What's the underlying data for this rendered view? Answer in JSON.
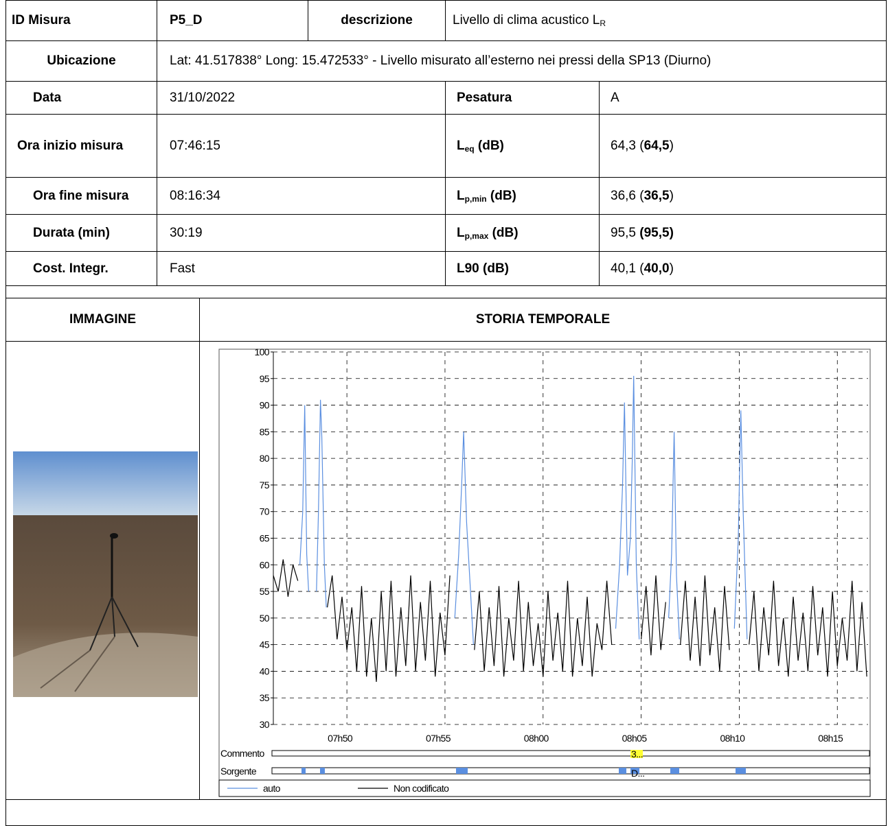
{
  "table": {
    "id_label": "ID Misura",
    "id_value": "P5_D",
    "desc_label": "descrizione",
    "desc_value": {
      "text": "Livello di clima acustico L",
      "sub": "R"
    },
    "location_label": "Ubicazione",
    "location_value": "Lat: 41.517838° Long: 15.472533° - Livello misurato all’esterno nei pressi della SP13 (Diurno)",
    "date_label": "Data",
    "date_value": "31/10/2022",
    "weighting_label": "Pesatura",
    "weighting_value": "A",
    "rows": [
      {
        "label": "Ora inizio misura",
        "value": "07:46:15",
        "param": {
          "text": "L",
          "sub": "eq",
          "unit": " (dB)"
        },
        "result": [
          "64,3 (",
          "64,5",
          ")"
        ]
      },
      {
        "label": "Ora fine misura",
        "value": "08:16:34",
        "param": {
          "text": "L",
          "sub": "p,min",
          "unit": " (dB)"
        },
        "result": [
          "36,6 (",
          "36,5",
          ")"
        ]
      },
      {
        "label": "Durata (min)",
        "value": "30:19",
        "param": {
          "text": "L",
          "sub": "p,max",
          "unit": " (dB)"
        },
        "result": [
          "95,5 ",
          "(95,5)"
        ]
      },
      {
        "label": "Cost. Integr.",
        "value": "Fast",
        "param": {
          "text": "L90 (dB)"
        },
        "result": [
          "40,1 (",
          "40,0",
          ")"
        ]
      }
    ]
  },
  "image_header": "IMMAGINE",
  "chart_header": "STORIA TEMPORALE",
  "chart_data": {
    "type": "line",
    "xlim": [
      466.25,
      496.5667
    ],
    "xticks": [
      {
        "value": 470,
        "label": "07h50"
      },
      {
        "value": 475,
        "label": "07h55"
      },
      {
        "value": 480,
        "label": "08h00"
      },
      {
        "value": 485,
        "label": "08h05"
      },
      {
        "value": 490,
        "label": "08h10"
      },
      {
        "value": 495,
        "label": "08h15"
      }
    ],
    "ylim": [
      30,
      100
    ],
    "yticks": [
      30,
      35,
      40,
      45,
      50,
      55,
      60,
      65,
      70,
      75,
      80,
      85,
      90,
      95,
      100
    ],
    "grid": true,
    "tracks": [
      "Commento",
      "Sorgente"
    ],
    "annotations": [
      "3...",
      "D..."
    ],
    "series": [
      {
        "name": "auto",
        "color": "#5b8fe0",
        "x": [
          467.6,
          467.75,
          467.85,
          467.95,
          468.05,
          468.1,
          468.45,
          468.55,
          468.65,
          468.72,
          468.85,
          468.95,
          469.0,
          475.5,
          475.7,
          475.85,
          475.95,
          476.1,
          476.3,
          476.45,
          476.5,
          483.7,
          483.9,
          484.05,
          484.15,
          484.3,
          484.45,
          484.55,
          484.62,
          484.75,
          484.9,
          485.0,
          486.4,
          486.55,
          486.68,
          486.8,
          486.95,
          487.0,
          489.75,
          489.95,
          490.08,
          490.2,
          490.4
        ],
        "values": [
          60,
          70,
          90,
          62,
          55,
          null,
          55,
          70,
          91,
          84,
          60,
          52,
          null,
          50,
          62,
          75,
          85,
          68,
          55,
          45,
          null,
          48,
          60,
          75,
          90.5,
          58,
          65,
          80,
          95.5,
          60,
          46,
          null,
          50,
          62,
          85,
          58,
          46,
          null,
          48,
          65,
          89,
          70,
          46
        ]
      },
      {
        "name": "Non codificato",
        "color": "#000000",
        "x": [
          466.25,
          466.5,
          466.75,
          467.0,
          467.25,
          467.5,
          467.75,
          468.0,
          468.25,
          468.5,
          468.75,
          469.0,
          469.25,
          469.5,
          469.75,
          470.0,
          470.25,
          470.5,
          470.75,
          471.0,
          471.25,
          471.5,
          471.75,
          472.0,
          472.25,
          472.5,
          472.75,
          473.0,
          473.25,
          473.5,
          473.75,
          474.0,
          474.25,
          474.5,
          474.75,
          475.0,
          475.25,
          475.5,
          475.75,
          476.0,
          476.25,
          476.5,
          476.75,
          477.0,
          477.25,
          477.5,
          477.75,
          478.0,
          478.25,
          478.5,
          478.75,
          479.0,
          479.25,
          479.5,
          479.75,
          480.0,
          480.25,
          480.5,
          480.75,
          481.0,
          481.25,
          481.5,
          481.75,
          482.0,
          482.25,
          482.5,
          482.75,
          483.0,
          483.25,
          483.5,
          483.75,
          484.0,
          484.25,
          484.5,
          484.75,
          485.0,
          485.25,
          485.5,
          485.75,
          486.0,
          486.25,
          486.5,
          486.75,
          487.0,
          487.25,
          487.5,
          487.75,
          488.0,
          488.25,
          488.5,
          488.75,
          489.0,
          489.25,
          489.5,
          489.75,
          490.0,
          490.25,
          490.5,
          490.75,
          491.0,
          491.25,
          491.5,
          491.75,
          492.0,
          492.25,
          492.5,
          492.75,
          493.0,
          493.25,
          493.5,
          493.75,
          494.0,
          494.25,
          494.5,
          494.75,
          495.0,
          495.25,
          495.5,
          495.75,
          496.0,
          496.25,
          496.5
        ],
        "values": [
          58,
          55,
          61,
          54,
          60,
          57,
          null,
          null,
          58,
          null,
          null,
          52,
          58,
          46,
          54,
          44,
          52,
          40,
          56,
          39,
          50,
          38,
          55,
          40,
          57,
          39,
          52,
          41,
          58,
          40,
          53,
          42,
          57,
          39,
          51,
          43,
          58,
          null,
          null,
          null,
          null,
          44,
          55,
          40,
          52,
          41,
          56,
          39,
          50,
          42,
          57,
          40,
          53,
          41,
          49,
          39,
          55,
          42,
          51,
          40,
          57,
          39,
          50,
          41,
          54,
          39,
          49,
          44,
          57,
          45,
          null,
          null,
          null,
          null,
          null,
          46,
          56,
          43,
          58,
          44,
          53,
          null,
          null,
          45,
          57,
          42,
          54,
          41,
          58,
          43,
          52,
          40,
          56,
          44,
          null,
          null,
          null,
          45,
          55,
          40,
          52,
          43,
          57,
          41,
          50,
          39,
          54,
          42,
          51,
          40,
          56,
          43,
          52,
          39,
          55,
          41,
          50,
          42,
          57,
          40,
          53,
          39
        ]
      }
    ]
  }
}
